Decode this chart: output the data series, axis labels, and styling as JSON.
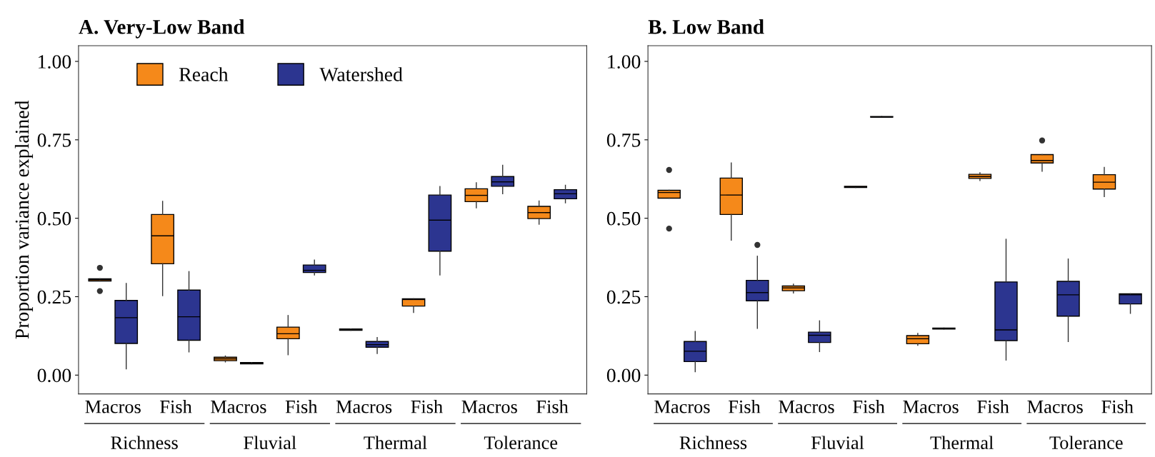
{
  "chart_data": [
    {
      "type": "box",
      "title": "A. Very-Low Band",
      "ylabel": "Proportion variance explained",
      "categories": [
        "Macros",
        "Fish",
        "Macros",
        "Fish",
        "Macros",
        "Fish",
        "Macros",
        "Fish"
      ],
      "annotations": [
        "Richness",
        "Fluvial",
        "Thermal",
        "Tolerance"
      ],
      "ylim": [
        -0.06,
        1.05
      ],
      "yticks": [
        {
          "value": 0,
          "label": "0.00"
        },
        {
          "value": 0.25,
          "label": "0.25"
        },
        {
          "value": 0.5,
          "label": "0.50"
        },
        {
          "value": 0.75,
          "label": "0.75"
        },
        {
          "value": 1,
          "label": "1.00"
        }
      ],
      "grid": false,
      "legend": "top left",
      "series": [
        {
          "name": "Reach",
          "color": "#f5891a",
          "boxes": [
            {
              "low": 0.3,
              "q1": 0.3,
              "median": 0.304,
              "q3": 0.307,
              "high": 0.307,
              "outliers": [
                0.342,
                0.268
              ]
            },
            {
              "low": 0.253,
              "q1": 0.355,
              "median": 0.444,
              "q3": 0.512,
              "high": 0.554
            },
            {
              "low": 0.042,
              "q1": 0.046,
              "median": 0.052,
              "q3": 0.057,
              "high": 0.061
            },
            {
              "low": 0.065,
              "q1": 0.116,
              "median": 0.132,
              "q3": 0.153,
              "high": 0.19
            },
            {
              "low": 0.143,
              "q1": 0.143,
              "median": 0.145,
              "q3": 0.147,
              "high": 0.147
            },
            {
              "low": 0.2,
              "q1": 0.22,
              "median": 0.241,
              "q3": 0.243,
              "high": 0.243
            },
            {
              "low": 0.533,
              "q1": 0.553,
              "median": 0.573,
              "q3": 0.594,
              "high": 0.613
            },
            {
              "low": 0.481,
              "q1": 0.499,
              "median": 0.518,
              "q3": 0.538,
              "high": 0.555
            }
          ]
        },
        {
          "name": "Watershed",
          "color": "#2c3590",
          "boxes": [
            {
              "low": 0.02,
              "q1": 0.101,
              "median": 0.183,
              "q3": 0.238,
              "high": 0.292
            },
            {
              "low": 0.074,
              "q1": 0.111,
              "median": 0.186,
              "q3": 0.271,
              "high": 0.33
            },
            {
              "low": 0.036,
              "q1": 0.036,
              "median": 0.038,
              "q3": 0.04,
              "high": 0.04
            },
            {
              "low": 0.319,
              "q1": 0.327,
              "median": 0.334,
              "q3": 0.351,
              "high": 0.367
            },
            {
              "low": 0.069,
              "q1": 0.089,
              "median": 0.097,
              "q3": 0.107,
              "high": 0.12
            },
            {
              "low": 0.319,
              "q1": 0.395,
              "median": 0.494,
              "q3": 0.574,
              "high": 0.601
            },
            {
              "low": 0.578,
              "q1": 0.602,
              "median": 0.616,
              "q3": 0.633,
              "high": 0.669
            },
            {
              "low": 0.549,
              "q1": 0.562,
              "median": 0.578,
              "q3": 0.591,
              "high": 0.605
            }
          ]
        }
      ]
    },
    {
      "type": "box",
      "title": "B. Low Band",
      "categories": [
        "Macros",
        "Fish",
        "Macros",
        "Fish",
        "Macros",
        "Fish",
        "Macros",
        "Fish"
      ],
      "annotations": [
        "Richness",
        "Fluvial",
        "Thermal",
        "Tolerance"
      ],
      "ylim": [
        -0.06,
        1.05
      ],
      "yticks": [
        {
          "value": 0,
          "label": "0.00"
        },
        {
          "value": 0.25,
          "label": "0.25"
        },
        {
          "value": 0.5,
          "label": "0.50"
        },
        {
          "value": 0.75,
          "label": "0.75"
        },
        {
          "value": 1,
          "label": "1.00"
        }
      ],
      "grid": false,
      "series": [
        {
          "color": "#f5891a",
          "boxes": [
            {
              "low": 0.564,
              "q1": 0.564,
              "median": 0.582,
              "q3": 0.589,
              "high": 0.589,
              "outliers": [
                0.654,
                0.467
              ]
            },
            {
              "low": 0.43,
              "q1": 0.512,
              "median": 0.574,
              "q3": 0.628,
              "high": 0.676
            },
            {
              "low": 0.262,
              "q1": 0.269,
              "median": 0.278,
              "q3": 0.284,
              "high": 0.29
            },
            {
              "low": 0.598,
              "q1": 0.598,
              "median": 0.6,
              "q3": 0.602,
              "high": 0.602
            },
            {
              "low": 0.095,
              "q1": 0.1,
              "median": 0.116,
              "q3": 0.126,
              "high": 0.133
            },
            {
              "low": 0.62,
              "q1": 0.627,
              "median": 0.633,
              "q3": 0.64,
              "high": 0.645
            },
            {
              "low": 0.65,
              "q1": 0.676,
              "median": 0.684,
              "q3": 0.703,
              "high": 0.703,
              "outliers": [
                0.748
              ]
            },
            {
              "low": 0.569,
              "q1": 0.593,
              "median": 0.615,
              "q3": 0.639,
              "high": 0.662
            }
          ]
        },
        {
          "color": "#2c3590",
          "boxes": [
            {
              "low": 0.011,
              "q1": 0.043,
              "median": 0.076,
              "q3": 0.107,
              "high": 0.139
            },
            {
              "low": 0.149,
              "q1": 0.237,
              "median": 0.263,
              "q3": 0.302,
              "high": 0.379,
              "outliers": [
                0.415
              ]
            },
            {
              "low": 0.075,
              "q1": 0.104,
              "median": 0.127,
              "q3": 0.137,
              "high": 0.173
            },
            {
              "low": 0.822,
              "q1": 0.822,
              "median": 0.823,
              "q3": 0.824,
              "high": 0.824
            },
            {
              "low": 0.147,
              "q1": 0.147,
              "median": 0.148,
              "q3": 0.15,
              "high": 0.15
            },
            {
              "low": 0.048,
              "q1": 0.11,
              "median": 0.144,
              "q3": 0.297,
              "high": 0.433
            },
            {
              "low": 0.107,
              "q1": 0.188,
              "median": 0.256,
              "q3": 0.299,
              "high": 0.37
            },
            {
              "low": 0.197,
              "q1": 0.227,
              "median": 0.256,
              "q3": 0.259,
              "high": 0.259
            }
          ]
        }
      ]
    }
  ]
}
